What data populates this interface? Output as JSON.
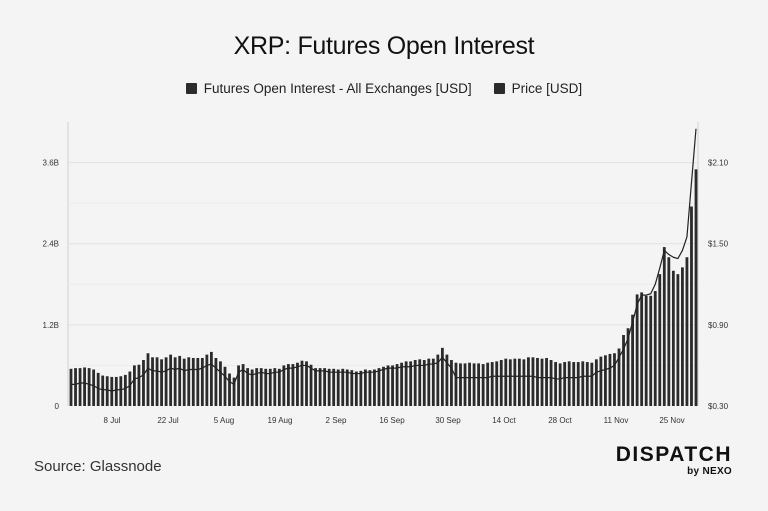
{
  "chart_data": {
    "type": "bar",
    "title": "XRP: Futures Open Interest",
    "legend": [
      "Futures Open Interest - All Exchanges [USD]",
      "Price [USD]"
    ],
    "x_tick_labels": [
      "8 Jul",
      "22 Jul",
      "5 Aug",
      "19 Aug",
      "2 Sep",
      "16 Sep",
      "30 Sep",
      "14 Oct",
      "28 Oct",
      "11 Nov",
      "25 Nov"
    ],
    "y_left_ticks": [
      "0",
      "1.2B",
      "2.4B",
      "3.6B"
    ],
    "y_left_range": [
      0,
      4200000000
    ],
    "y_right_ticks": [
      "$0.30",
      "$0.90",
      "$1.50",
      "$2.10"
    ],
    "y_right_range": [
      0.3,
      2.4
    ],
    "grid": true,
    "series": [
      {
        "name": "Futures Open Interest - All Exchanges [USD]",
        "type": "bar",
        "color": "#2b2b2b",
        "values": [
          550000000,
          560000000,
          560000000,
          570000000,
          560000000,
          540000000,
          490000000,
          450000000,
          440000000,
          430000000,
          430000000,
          440000000,
          460000000,
          510000000,
          600000000,
          610000000,
          680000000,
          780000000,
          720000000,
          720000000,
          690000000,
          720000000,
          760000000,
          720000000,
          740000000,
          700000000,
          720000000,
          710000000,
          710000000,
          710000000,
          760000000,
          800000000,
          710000000,
          660000000,
          580000000,
          480000000,
          420000000,
          600000000,
          620000000,
          560000000,
          540000000,
          560000000,
          560000000,
          550000000,
          550000000,
          560000000,
          550000000,
          600000000,
          620000000,
          620000000,
          640000000,
          670000000,
          660000000,
          610000000,
          560000000,
          560000000,
          560000000,
          550000000,
          550000000,
          540000000,
          550000000,
          540000000,
          530000000,
          510000000,
          520000000,
          540000000,
          530000000,
          540000000,
          560000000,
          580000000,
          600000000,
          600000000,
          620000000,
          640000000,
          660000000,
          660000000,
          680000000,
          690000000,
          680000000,
          700000000,
          700000000,
          760000000,
          860000000,
          760000000,
          680000000,
          640000000,
          630000000,
          630000000,
          640000000,
          630000000,
          630000000,
          620000000,
          640000000,
          650000000,
          660000000,
          680000000,
          700000000,
          690000000,
          700000000,
          700000000,
          690000000,
          720000000,
          720000000,
          710000000,
          700000000,
          710000000,
          680000000,
          650000000,
          630000000,
          650000000,
          660000000,
          650000000,
          650000000,
          660000000,
          650000000,
          640000000,
          690000000,
          730000000,
          750000000,
          770000000,
          780000000,
          850000000,
          1050000000,
          1150000000,
          1350000000,
          1650000000,
          1680000000,
          1630000000,
          1630000000,
          1700000000,
          1950000000,
          2350000000,
          2200000000,
          2000000000,
          1950000000,
          2050000000,
          2200000000,
          2950000000,
          3500000000
        ]
      },
      {
        "name": "Price [USD]",
        "type": "line",
        "color": "#222222",
        "values": [
          0.46,
          0.46,
          0.47,
          0.47,
          0.46,
          0.45,
          0.43,
          0.42,
          0.42,
          0.41,
          0.42,
          0.42,
          0.43,
          0.45,
          0.5,
          0.51,
          0.53,
          0.58,
          0.56,
          0.56,
          0.55,
          0.56,
          0.58,
          0.57,
          0.58,
          0.56,
          0.57,
          0.57,
          0.57,
          0.58,
          0.6,
          0.61,
          0.58,
          0.55,
          0.52,
          0.48,
          0.46,
          0.55,
          0.57,
          0.54,
          0.53,
          0.54,
          0.55,
          0.54,
          0.54,
          0.55,
          0.55,
          0.57,
          0.58,
          0.58,
          0.59,
          0.6,
          0.6,
          0.58,
          0.56,
          0.56,
          0.56,
          0.55,
          0.55,
          0.55,
          0.55,
          0.55,
          0.54,
          0.54,
          0.54,
          0.55,
          0.55,
          0.55,
          0.56,
          0.57,
          0.58,
          0.58,
          0.58,
          0.59,
          0.59,
          0.59,
          0.6,
          0.6,
          0.6,
          0.61,
          0.61,
          0.62,
          0.66,
          0.62,
          0.58,
          0.51,
          0.51,
          0.51,
          0.51,
          0.51,
          0.51,
          0.51,
          0.51,
          0.52,
          0.52,
          0.52,
          0.52,
          0.52,
          0.52,
          0.52,
          0.52,
          0.52,
          0.52,
          0.51,
          0.51,
          0.51,
          0.51,
          0.5,
          0.5,
          0.51,
          0.51,
          0.51,
          0.51,
          0.52,
          0.52,
          0.52,
          0.55,
          0.56,
          0.57,
          0.58,
          0.6,
          0.66,
          0.72,
          0.8,
          0.92,
          1.05,
          1.12,
          1.12,
          1.13,
          1.2,
          1.32,
          1.45,
          1.42,
          1.4,
          1.39,
          1.45,
          1.55,
          1.95,
          2.35
        ]
      }
    ]
  },
  "footer": {
    "source": "Source: Glassnode",
    "brand_name": "DISPATCH",
    "brand_sub": "by NEXO"
  }
}
